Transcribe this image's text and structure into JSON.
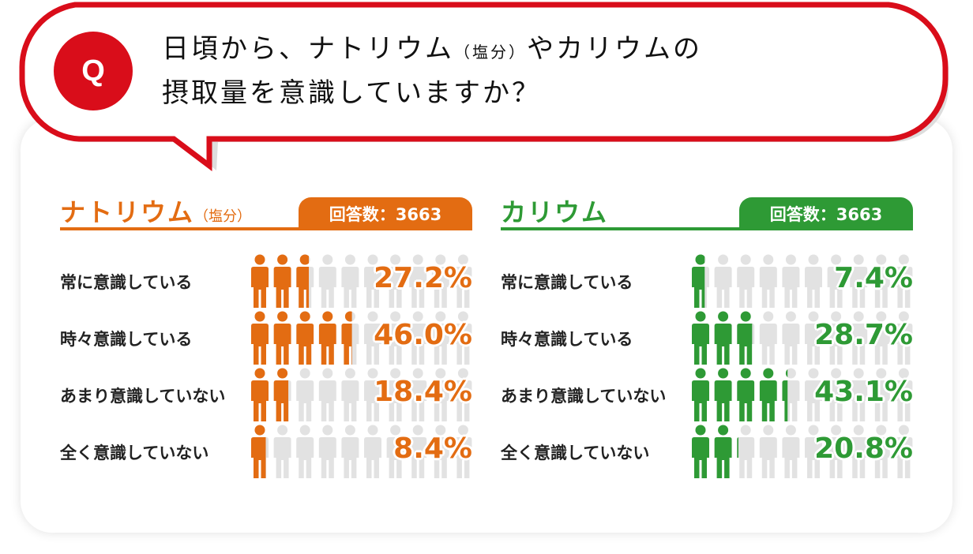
{
  "question": {
    "badge": "Q",
    "line1_a": "日頃から、ナトリウム",
    "line1_small": "（塩分）",
    "line1_b": "やカリウムの",
    "line2": "摂取量を意識していますか？"
  },
  "colors": {
    "bubble_border": "#d90d1a",
    "sodium": "#e36c12",
    "potassium": "#2e9a35",
    "empty_icon": "#e2e2e2"
  },
  "chart_data": [
    {
      "type": "pictogram",
      "title": "ナトリウム",
      "title_sub": "（塩分）",
      "respondents_label": "回答数：3663",
      "icon": "person-icon",
      "icons_per_row": 10,
      "categories": [
        "常に意識している",
        "時々意識している",
        "あまり意識していない",
        "全く意識していない"
      ],
      "values": [
        27.2,
        46.0,
        18.4,
        8.4
      ],
      "labels": [
        "27.2%",
        "46.0%",
        "18.4%",
        "8.4%"
      ]
    },
    {
      "type": "pictogram",
      "title": "カリウム",
      "title_sub": "",
      "respondents_label": "回答数：3663",
      "icon": "person-icon",
      "icons_per_row": 10,
      "categories": [
        "常に意識している",
        "時々意識している",
        "あまり意識していない",
        "全く意識していない"
      ],
      "values": [
        7.4,
        28.7,
        43.1,
        20.8
      ],
      "labels": [
        "7.4%",
        "28.7%",
        "43.1%",
        "20.8%"
      ]
    }
  ]
}
